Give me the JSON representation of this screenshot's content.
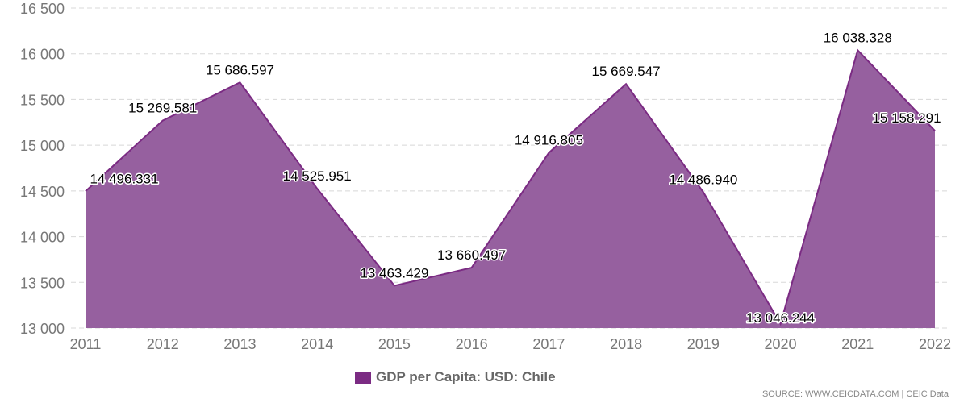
{
  "chart_data": {
    "type": "area",
    "x": [
      "2011",
      "2012",
      "2013",
      "2014",
      "2015",
      "2016",
      "2017",
      "2018",
      "2019",
      "2020",
      "2021",
      "2022"
    ],
    "series": [
      {
        "name": "GDP per Capita: USD: Chile",
        "values": [
          14496.331,
          15269.581,
          15686.597,
          14525.951,
          13463.429,
          13660.497,
          14916.805,
          15669.547,
          14486.94,
          13046.244,
          16038.328,
          15158.291
        ]
      }
    ],
    "data_labels": [
      "14 496.331",
      "15 269.581",
      "15 686.597",
      "14 525.951",
      "13 463.429",
      "13 660.497",
      "14 916.805",
      "15 669.547",
      "14 486.940",
      "13 046.244",
      "16 038.328",
      "15 158.291"
    ],
    "ylim": [
      13000,
      16500
    ],
    "yticks": [
      13000,
      13500,
      14000,
      14500,
      15000,
      15500,
      16000,
      16500
    ],
    "ytick_labels": [
      "13 000",
      "13 500",
      "14 000",
      "14 500",
      "15 000",
      "15 500",
      "16 000",
      "16 500"
    ],
    "grid": true,
    "legend": "bottom",
    "colors": {
      "fill": "#96609f",
      "line": "#7b2b83"
    }
  },
  "legend": {
    "label": "GDP per Capita: USD: Chile"
  },
  "source": "SOURCE: WWW.CEICDATA.COM | CEIC Data"
}
